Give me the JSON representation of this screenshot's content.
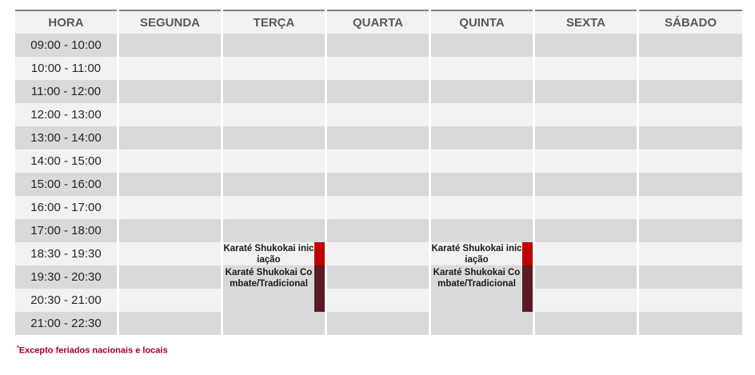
{
  "headers": [
    "HORA",
    "SEGUNDA",
    "TERÇA",
    "QUARTA",
    "QUINTA",
    "SEXTA",
    "SÁBADO"
  ],
  "times": [
    "09:00 - 10:00",
    "10:00 - 11:00",
    "11:00 - 12:00",
    "12:00 - 13:00",
    "13:00 - 14:00",
    "14:00 - 15:00",
    "15:00 - 16:00",
    "16:00 - 17:00",
    "17:00 - 18:00",
    "18:30 - 19:30",
    "19:30 - 20:30",
    "20:30 - 21:00",
    "21:00 - 22:30"
  ],
  "events": [
    {
      "day": "TERÇA",
      "start": "18:30 - 19:30",
      "rows": 1,
      "title": "Karaté Shukokai iniciação",
      "color": "#c00000"
    },
    {
      "day": "TERÇA",
      "start": "19:30 - 20:30",
      "rows": 2,
      "title": "Karaté Shukokai Combate/Tradicional",
      "color": "#5c1a24"
    },
    {
      "day": "QUINTA",
      "start": "18:30 - 19:30",
      "rows": 1,
      "title": "Karaté Shukokai iniciação",
      "color": "#c00000"
    },
    {
      "day": "QUINTA",
      "start": "19:30 - 20:30",
      "rows": 2,
      "title": "Karaté Shukokai Combate/Tradicional",
      "color": "#5c1a24"
    }
  ],
  "footnote": {
    "mark": "*",
    "text": "Excepto feriados nacionais e locais"
  },
  "colors": {
    "row_dark": "#d9d9d9",
    "row_light": "#f2f2f2",
    "footnote": "#a50021"
  }
}
